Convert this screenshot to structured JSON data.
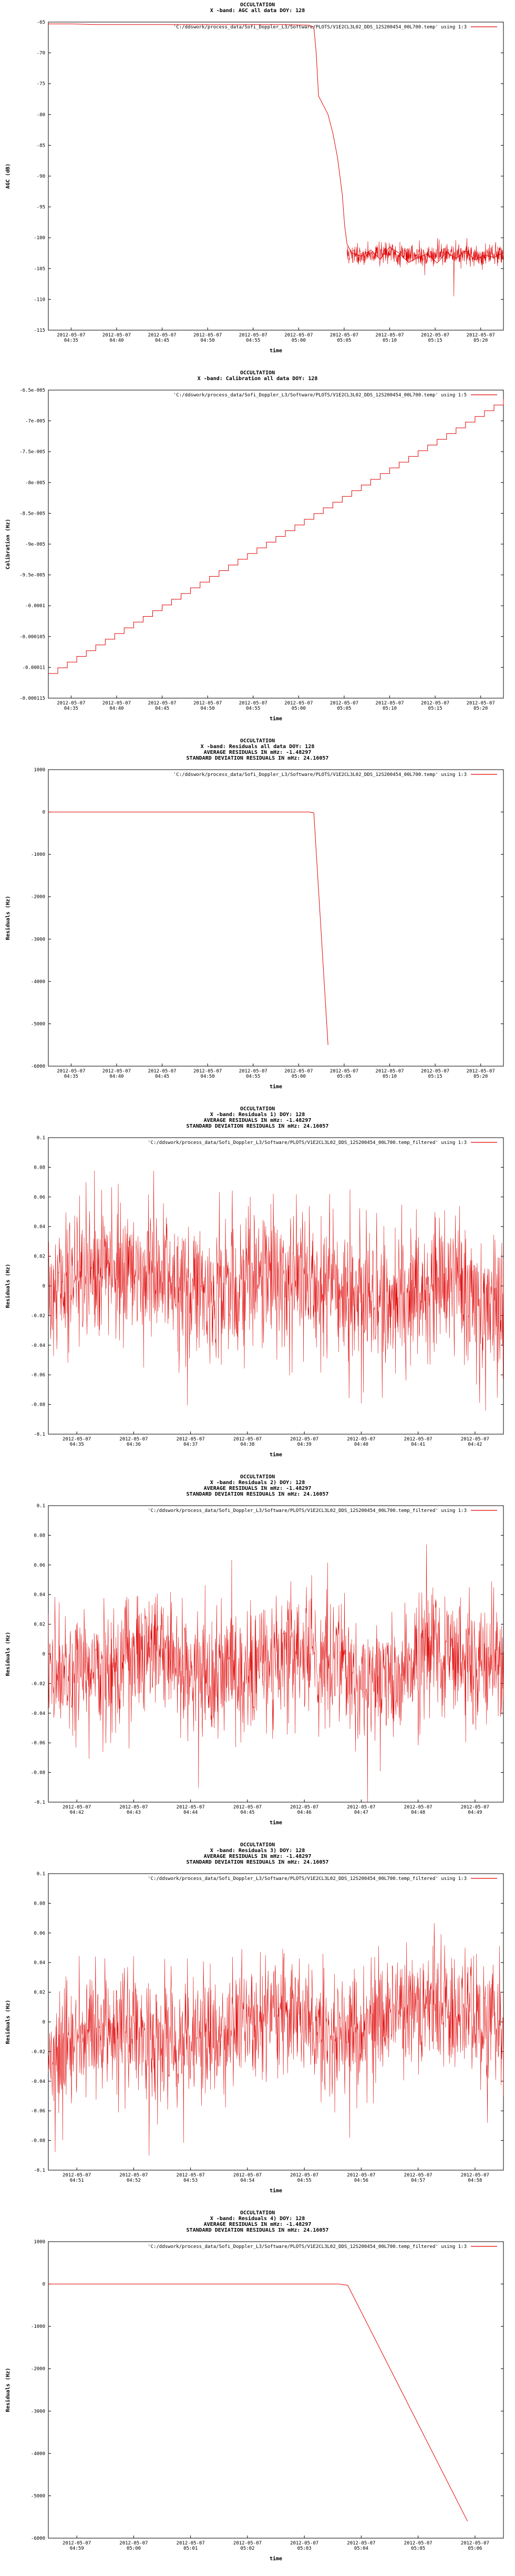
{
  "chart_data": [
    {
      "type": "line",
      "title": [
        "OCCULTATION",
        "X -band: AGC all data DOY: 128"
      ],
      "legend": "'C:/ddswork/process_data/Sofi_Doppler_L3/Software/PLOTS/V1E2CL3L02_DDS_12S200454_00L700.temp' using 1:3",
      "xlabel": "time",
      "ylabel": "AGC (dB)",
      "ylim": [
        -115,
        -65
      ],
      "yticks": [
        -65,
        -70,
        -75,
        -80,
        -85,
        -90,
        -95,
        -100,
        -105,
        -110,
        -115
      ],
      "xticks": [
        "2012-05-07\n04:35",
        "2012-05-07\n04:40",
        "2012-05-07\n04:45",
        "2012-05-07\n04:50",
        "2012-05-07\n04:55",
        "2012-05-07\n05:00",
        "2012-05-07\n05:05",
        "2012-05-07\n05:10",
        "2012-05-07\n05:15",
        "2012-05-07\n05:20"
      ],
      "xlim": [
        0,
        9.6
      ],
      "series": [
        {
          "x": [
            0,
            0.5,
            1,
            2,
            3,
            4,
            5,
            5.5,
            5.6,
            5.65,
            5.7,
            5.8,
            5.9,
            6.0,
            6.1,
            6.2,
            6.25,
            6.3,
            6.4,
            6.6,
            6.8,
            7.0,
            7.2,
            7.4,
            7.6,
            7.8,
            8.0,
            8.2,
            8.4,
            8.6,
            8.8,
            9.0,
            9.2,
            9.4,
            9.6
          ],
          "y": [
            -65.3,
            -65.3,
            -65.4,
            -65.4,
            -65.4,
            -65.4,
            -65.4,
            -65.5,
            -65.8,
            -70,
            -77,
            -78.5,
            -80,
            -83,
            -87,
            -93,
            -98,
            -101,
            -102.5,
            -103,
            -102,
            -103.5,
            -101.5,
            -102.5,
            -104,
            -103.2,
            -102.6,
            -104.1,
            -102.3,
            -103.4,
            -102.1,
            -103.6,
            -102.8,
            -103.2,
            -102.4
          ]
        }
      ]
    },
    {
      "type": "line",
      "title": [
        "OCCULTATION",
        "X -band: Calibration all data DOY: 128"
      ],
      "legend": "'C:/ddswork/process_data/Sofi_Doppler_L3/Software/PLOTS/V1E2CL3L02_DDS_12S200454_00L700.temp' using 1:5",
      "xlabel": "time",
      "ylabel": "Calibration (Hz)",
      "ylim": [
        -0.000115,
        -6.5e-05
      ],
      "yticks": [
        "-6.5e-005",
        "-7e-005",
        "-7.5e-005",
        "-8e-005",
        "-8.5e-005",
        "-9e-005",
        "-9.5e-005",
        "-0.0001",
        "-0.000105",
        "-0.00011",
        "-0.000115"
      ],
      "yvals": [
        -6.5e-05,
        -7e-05,
        -7.5e-05,
        -8e-05,
        -8.5e-05,
        -9e-05,
        -9.5e-05,
        -0.0001,
        -0.000105,
        -0.00011,
        -0.000115
      ],
      "xticks": [
        "2012-05-07\n04:35",
        "2012-05-07\n04:40",
        "2012-05-07\n04:45",
        "2012-05-07\n04:50",
        "2012-05-07\n04:55",
        "2012-05-07\n05:00",
        "2012-05-07\n05:05",
        "2012-05-07\n05:10",
        "2012-05-07\n05:15",
        "2012-05-07\n05:20"
      ],
      "xlim": [
        0,
        9.6
      ],
      "series": [
        {
          "x": [
            0,
            9.6
          ],
          "y": [
            -0.000111,
            -6.65e-05
          ],
          "steps": 48
        }
      ]
    },
    {
      "type": "line",
      "title": [
        "OCCULTATION",
        "X -band: Residuals all data DOY: 128",
        "AVERAGE RESIDUALS IN mHz: -1.48297",
        "STANDARD DEVIATION RESIDUALS IN mHz: 24.16057"
      ],
      "legend": "'C:/ddswork/process_data/Sofi_Doppler_L3/Software/PLOTS/V1E2CL3L02_DDS_12S200454_00L700.temp' using 1:3",
      "xlabel": "time",
      "ylabel": "Residuals (Hz)",
      "ylim": [
        -6000,
        1000
      ],
      "yticks": [
        1000,
        0,
        -1000,
        -2000,
        -3000,
        -4000,
        -5000,
        -6000
      ],
      "xticks": [
        "2012-05-07\n04:35",
        "2012-05-07\n04:40",
        "2012-05-07\n04:45",
        "2012-05-07\n04:50",
        "2012-05-07\n04:55",
        "2012-05-07\n05:00",
        "2012-05-07\n05:05",
        "2012-05-07\n05:10",
        "2012-05-07\n05:15",
        "2012-05-07\n05:20"
      ],
      "xlim": [
        0,
        9.6
      ],
      "series": [
        {
          "x": [
            0,
            5.5,
            5.6,
            5.9
          ],
          "y": [
            0,
            0,
            -20,
            -5500
          ]
        }
      ]
    },
    {
      "type": "line",
      "title": [
        "OCCULTATION",
        "X -band: Residuals 1) DOY: 128",
        "AVERAGE RESIDUALS IN mHz: -1.48297",
        "STANDARD DEVIATION RESIDUALS IN mHz: 24.16057"
      ],
      "legend": "'C:/ddswork/process_data/Sofi_Doppler_L3/Software/PLOTS/V1E2CL3L02_DDS_12S200454_00L700.temp_filtered' using 1:3",
      "xlabel": "time",
      "ylabel": "Residuals (Hz)",
      "ylim": [
        -0.1,
        0.1
      ],
      "yticks": [
        "0.1",
        "0.08",
        "0.06",
        "0.04",
        "0.02",
        "0",
        "-0.02",
        "-0.04",
        "-0.06",
        "-0.08",
        "-0.1"
      ],
      "yvals": [
        0.1,
        0.08,
        0.06,
        0.04,
        0.02,
        0,
        -0.02,
        -0.04,
        -0.06,
        -0.08,
        -0.1
      ],
      "xticks": [
        "2012-05-07\n04:35",
        "2012-05-07\n04:36",
        "2012-05-07\n04:37",
        "2012-05-07\n04:38",
        "2012-05-07\n04:39",
        "2012-05-07\n04:40",
        "2012-05-07\n04:41",
        "2012-05-07\n04:42"
      ],
      "xlim": [
        0,
        7.6
      ],
      "noise": {
        "mean": 0.0,
        "sd": 0.024,
        "seed": 11,
        "trend": [
          0.008,
          -0.01
        ]
      }
    },
    {
      "type": "line",
      "title": [
        "OCCULTATION",
        "X -band: Residuals 2) DOY: 128",
        "AVERAGE RESIDUALS IN mHz: -1.48297",
        "STANDARD DEVIATION RESIDUALS IN mHz: 24.16057"
      ],
      "legend": "'C:/ddswork/process_data/Sofi_Doppler_L3/Software/PLOTS/V1E2CL3L02_DDS_12S200454_00L700.temp_filtered' using 1:3",
      "xlabel": "time",
      "ylabel": "Residuals (Hz)",
      "ylim": [
        -0.1,
        0.1
      ],
      "yticks": [
        "0.1",
        "0.08",
        "0.06",
        "0.04",
        "0.02",
        "0",
        "-0.02",
        "-0.04",
        "-0.06",
        "-0.08",
        "-0.1"
      ],
      "yvals": [
        0.1,
        0.08,
        0.06,
        0.04,
        0.02,
        0,
        -0.02,
        -0.04,
        -0.06,
        -0.08,
        -0.1
      ],
      "xticks": [
        "2012-05-07\n04:42",
        "2012-05-07\n04:43",
        "2012-05-07\n04:44",
        "2012-05-07\n04:45",
        "2012-05-07\n04:46",
        "2012-05-07\n04:47",
        "2012-05-07\n04:48",
        "2012-05-07\n04:49"
      ],
      "xlim": [
        0,
        7.6
      ],
      "noise": {
        "mean": -0.005,
        "sd": 0.022,
        "seed": 23,
        "trend": [
          -0.002,
          -0.004
        ]
      }
    },
    {
      "type": "line",
      "title": [
        "OCCULTATION",
        "X -band: Residuals 3) DOY: 128",
        "AVERAGE RESIDUALS IN mHz: -1.48297",
        "STANDARD DEVIATION RESIDUALS IN mHz: 24.16057"
      ],
      "legend": "'C:/ddswork/process_data/Sofi_Doppler_L3/Software/PLOTS/V1E2CL3L02_DDS_12S200454_00L700.temp_filtered' using 1:3",
      "xlabel": "time",
      "ylabel": "Residuals (Hz)",
      "ylim": [
        -0.1,
        0.1
      ],
      "yticks": [
        "0.1",
        "0.08",
        "0.06",
        "0.04",
        "0.02",
        "0",
        "-0.02",
        "-0.04",
        "-0.06",
        "-0.08",
        "-0.1"
      ],
      "yvals": [
        0.1,
        0.08,
        0.06,
        0.04,
        0.02,
        0,
        -0.02,
        -0.04,
        -0.06,
        -0.08,
        -0.1
      ],
      "xticks": [
        "2012-05-07\n04:51",
        "2012-05-07\n04:52",
        "2012-05-07\n04:53",
        "2012-05-07\n04:54",
        "2012-05-07\n04:55",
        "2012-05-07\n04:56",
        "2012-05-07\n04:57",
        "2012-05-07\n04:58"
      ],
      "xlim": [
        0,
        7.6
      ],
      "noise": {
        "mean": -0.004,
        "sd": 0.022,
        "seed": 37,
        "trend": [
          -0.012,
          0.012
        ]
      }
    },
    {
      "type": "line",
      "title": [
        "OCCULTATION",
        "X -band: Residuals 4) DOY: 128",
        "AVERAGE RESIDUALS IN mHz: -1.48297",
        "STANDARD DEVIATION RESIDUALS IN mHz: 24.16057"
      ],
      "legend": "'C:/ddswork/process_data/Sofi_Doppler_L3/Software/PLOTS/V1E2CL3L02_DDS_12S200454_00L700.temp_filtered' using 1:3",
      "xlabel": "time",
      "ylabel": "Residuals (Hz)",
      "ylim": [
        -6000,
        1000
      ],
      "yticks": [
        1000,
        0,
        -1000,
        -2000,
        -3000,
        -4000,
        -5000,
        -6000
      ],
      "xticks": [
        "2012-05-07\n04:59",
        "2012-05-07\n05:00",
        "2012-05-07\n05:01",
        "2012-05-07\n05:02",
        "2012-05-07\n05:03",
        "2012-05-07\n05:04",
        "2012-05-07\n05:05",
        "2012-05-07\n05:06"
      ],
      "xlim": [
        0,
        7.6
      ],
      "series": [
        {
          "x": [
            0,
            4.85,
            5.0,
            7.0
          ],
          "y": [
            0,
            0,
            -30,
            -5600
          ]
        }
      ]
    }
  ]
}
